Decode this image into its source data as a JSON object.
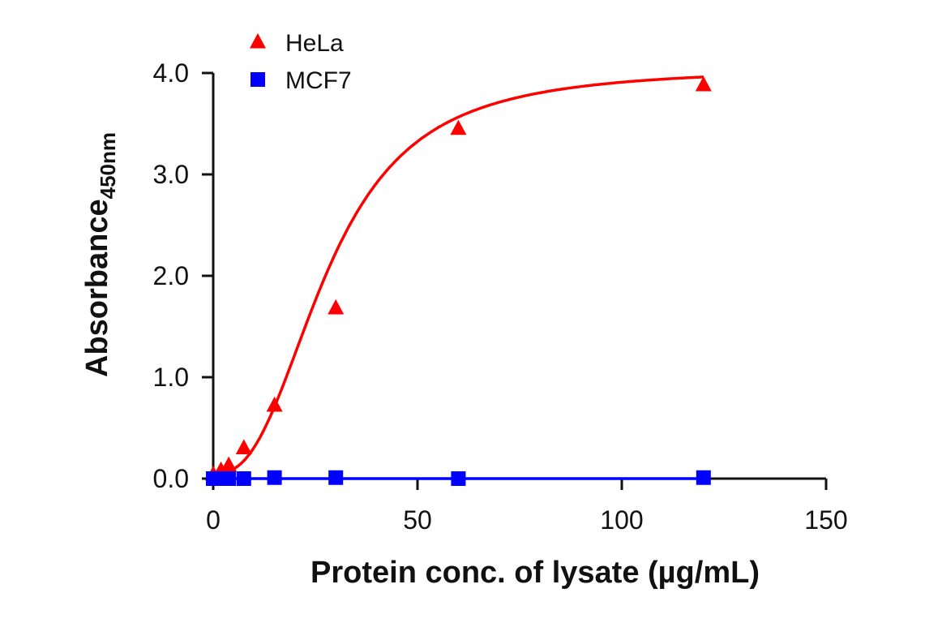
{
  "chart_data": {
    "type": "scatter",
    "title": "",
    "xlabel": "Protein conc. of lysate (µg/mL)",
    "ylabel": "Absorbance",
    "ylabel_subscript": "450nm",
    "xlim": [
      0,
      150
    ],
    "ylim": [
      0,
      4.0
    ],
    "x_ticks": [
      0,
      50,
      100,
      150
    ],
    "x_tick_labels": [
      "0",
      "50",
      "100",
      "150"
    ],
    "y_ticks": [
      0,
      1,
      2,
      3,
      4
    ],
    "y_tick_labels": [
      "0.0",
      "1.0",
      "2.0",
      "3.0",
      "4.0"
    ],
    "grid": false,
    "legend_position": "top-left",
    "series": [
      {
        "name": "HeLa",
        "color": "#ff0000",
        "marker": "triangle",
        "fit": "sigmoidal curve",
        "x": [
          0,
          1.9,
          3.8,
          7.5,
          15,
          30,
          60,
          120
        ],
        "y": [
          0.04,
          0.08,
          0.13,
          0.3,
          0.72,
          1.68,
          3.45,
          3.88
        ],
        "fit_params": {
          "bottom": 0.05,
          "top": 4.05,
          "ec50": 28,
          "hill": 2.6
        }
      },
      {
        "name": "MCF7",
        "color": "#0000ff",
        "marker": "square",
        "fit": "flat line",
        "x": [
          0,
          1.9,
          3.8,
          7.5,
          15,
          30,
          60,
          120
        ],
        "y": [
          0.0,
          0.0,
          0.0,
          0.0,
          0.01,
          0.01,
          0.0,
          0.01
        ]
      }
    ]
  }
}
